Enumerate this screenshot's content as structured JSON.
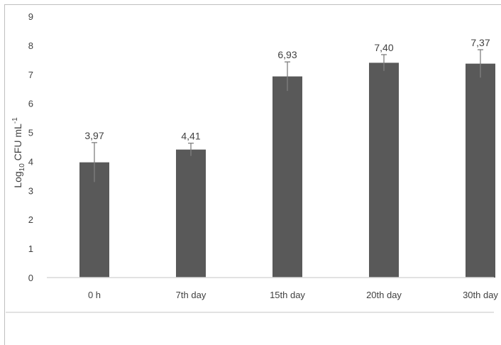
{
  "chart_data": {
    "type": "bar",
    "categories": [
      "0 h",
      "7th day",
      "15th day",
      "20th day",
      "30th day"
    ],
    "values": [
      3.97,
      4.41,
      6.93,
      7.4,
      7.37
    ],
    "value_labels": [
      "3,97",
      "4,41",
      "6,93",
      "7,40",
      "7,37"
    ],
    "error": [
      0.68,
      0.22,
      0.5,
      0.28,
      0.48
    ],
    "ylabel_base": "Log",
    "ylabel_sub": "10",
    "ylabel_text": " CFU mL",
    "ylabel_sup": "-1",
    "ylim": [
      0,
      9
    ],
    "yticks": [
      "0",
      "1",
      "2",
      "3",
      "4",
      "5",
      "6",
      "7",
      "8",
      "9"
    ],
    "grid": false,
    "legend": "none",
    "bar_color": "#595959",
    "error_color": "#7f7f7f",
    "axis_color": "#d9d9d9",
    "text_color": "#404040"
  }
}
